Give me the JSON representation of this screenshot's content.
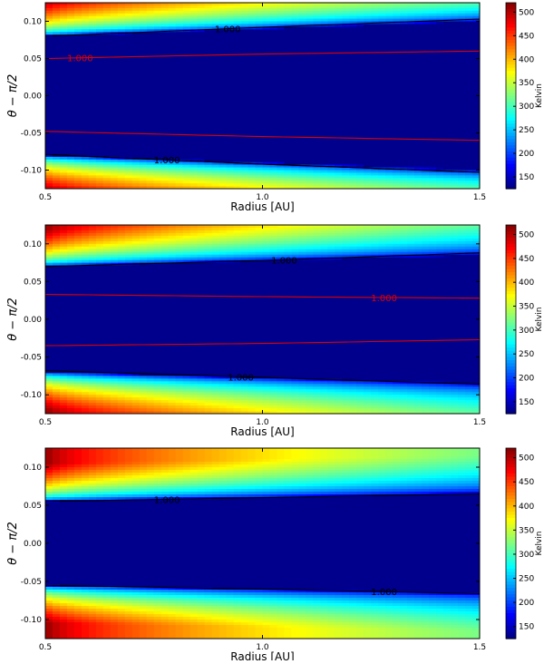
{
  "chart_data": [
    {
      "type": "heatmap",
      "xlabel": "Radius [AU]",
      "ylabel": "θ − π/2",
      "xlim": [
        0.5,
        1.5
      ],
      "ylim": [
        -0.125,
        0.125
      ],
      "xticks": [
        0.5,
        1.0,
        1.5
      ],
      "xtick_labels": [
        "0.5",
        "1.0",
        "1.5"
      ],
      "yticks": [
        0.1,
        0.05,
        0.0,
        -0.05,
        -0.1
      ],
      "ytick_labels": [
        "0.10",
        "0.05",
        "0.00",
        "-0.05",
        "-0.10"
      ],
      "colorbar": {
        "label": "Kelvin",
        "ticks": [
          500,
          450,
          400,
          350,
          300,
          250,
          200,
          150
        ],
        "range": [
          125,
          520
        ],
        "colormap": "jet"
      },
      "field": {
        "T_midplane": 130,
        "T_surface_inner": 520,
        "T_surface_outer": 370,
        "surface_edge_inner": 0.08,
        "surface_edge_outer": 0.1
      },
      "contours": [
        {
          "color": "#000000",
          "label": "1.000",
          "label_x": 0.92,
          "upper": [
            [
              0.5,
              0.08
            ],
            [
              1.0,
              0.092
            ],
            [
              1.5,
              0.103
            ]
          ],
          "lower": [
            [
              0.5,
              -0.079
            ],
            [
              1.0,
              -0.092
            ],
            [
              1.5,
              -0.103
            ]
          ],
          "label_on": "upper"
        },
        {
          "color": "#000000",
          "label": "1.000",
          "label_x": 0.78,
          "upper": null,
          "lower": [
            [
              0.5,
              -0.079
            ],
            [
              1.0,
              -0.092
            ],
            [
              1.5,
              -0.103
            ]
          ],
          "label_on": "lower"
        },
        {
          "color": "#dd0000",
          "label": "1.000",
          "label_x": 0.58,
          "upper": [
            [
              0.5,
              0.05
            ],
            [
              1.0,
              0.056
            ],
            [
              1.5,
              0.06
            ]
          ],
          "lower": [
            [
              0.5,
              -0.048
            ],
            [
              1.0,
              -0.055
            ],
            [
              1.5,
              -0.06
            ]
          ],
          "label_on": "upper"
        }
      ]
    },
    {
      "type": "heatmap",
      "xlabel": "Radius [AU]",
      "ylabel": "θ − π/2",
      "xlim": [
        0.5,
        1.5
      ],
      "ylim": [
        -0.125,
        0.125
      ],
      "xticks": [
        0.5,
        1.0,
        1.5
      ],
      "xtick_labels": [
        "0.5",
        "1.0",
        "1.5"
      ],
      "yticks": [
        0.1,
        0.05,
        0.0,
        -0.05,
        -0.1
      ],
      "ytick_labels": [
        "0.10",
        "0.05",
        "0.00",
        "-0.05",
        "-0.10"
      ],
      "colorbar": {
        "label": "Kelvin",
        "ticks": [
          500,
          450,
          400,
          350,
          300,
          250,
          200,
          150
        ],
        "range": [
          125,
          520
        ],
        "colormap": "jet"
      },
      "field": {
        "T_midplane": 130,
        "T_surface_inner": 520,
        "T_surface_outer": 330,
        "surface_edge_inner": 0.07,
        "surface_edge_outer": 0.085
      },
      "contours": [
        {
          "color": "#000000",
          "label": "1.000",
          "label_x": 1.05,
          "upper": [
            [
              0.5,
              0.07
            ],
            [
              1.0,
              0.078
            ],
            [
              1.5,
              0.088
            ]
          ],
          "lower": null,
          "label_on": "upper"
        },
        {
          "color": "#000000",
          "label": "1.000",
          "label_x": 0.95,
          "upper": null,
          "lower": [
            [
              0.5,
              -0.068
            ],
            [
              1.0,
              -0.077
            ],
            [
              1.5,
              -0.086
            ]
          ],
          "label_on": "lower"
        },
        {
          "color": "#dd0000",
          "label": "1.000",
          "label_x": 1.28,
          "upper": [
            [
              0.5,
              0.033
            ],
            [
              1.0,
              0.03
            ],
            [
              1.5,
              0.028
            ]
          ],
          "lower": [
            [
              0.5,
              -0.035
            ],
            [
              1.0,
              -0.032
            ],
            [
              1.5,
              -0.027
            ]
          ],
          "label_on": "upper"
        }
      ]
    },
    {
      "type": "heatmap",
      "xlabel": "Radius [AU]",
      "ylabel": "θ − π/2",
      "xlim": [
        0.5,
        1.5
      ],
      "ylim": [
        -0.125,
        0.125
      ],
      "xticks": [
        0.5,
        1.0,
        1.5
      ],
      "xtick_labels": [
        "0.5",
        "1.0",
        "1.5"
      ],
      "yticks": [
        0.1,
        0.05,
        0.0,
        -0.05,
        -0.1
      ],
      "ytick_labels": [
        "0.10",
        "0.05",
        "0.00",
        "-0.05",
        "-0.10"
      ],
      "colorbar": {
        "label": "Kelvin",
        "ticks": [
          500,
          450,
          400,
          350,
          300,
          250,
          200,
          150
        ],
        "range": [
          125,
          520
        ],
        "colormap": "jet"
      },
      "field": {
        "T_midplane": 130,
        "T_surface_inner": 520,
        "T_surface_outer": 320,
        "surface_edge_inner": 0.055,
        "surface_edge_outer": 0.065
      },
      "contours": [
        {
          "color": "#000000",
          "label": "1.000",
          "label_x": 0.78,
          "upper": [
            [
              0.5,
              0.055
            ],
            [
              1.0,
              0.06
            ],
            [
              1.5,
              0.065
            ]
          ],
          "lower": null,
          "label_on": "upper"
        },
        {
          "color": "#000000",
          "label": "1.000",
          "label_x": 1.28,
          "upper": null,
          "lower": [
            [
              0.5,
              -0.055
            ],
            [
              1.0,
              -0.06
            ],
            [
              1.5,
              -0.066
            ]
          ],
          "label_on": "lower"
        }
      ]
    }
  ]
}
